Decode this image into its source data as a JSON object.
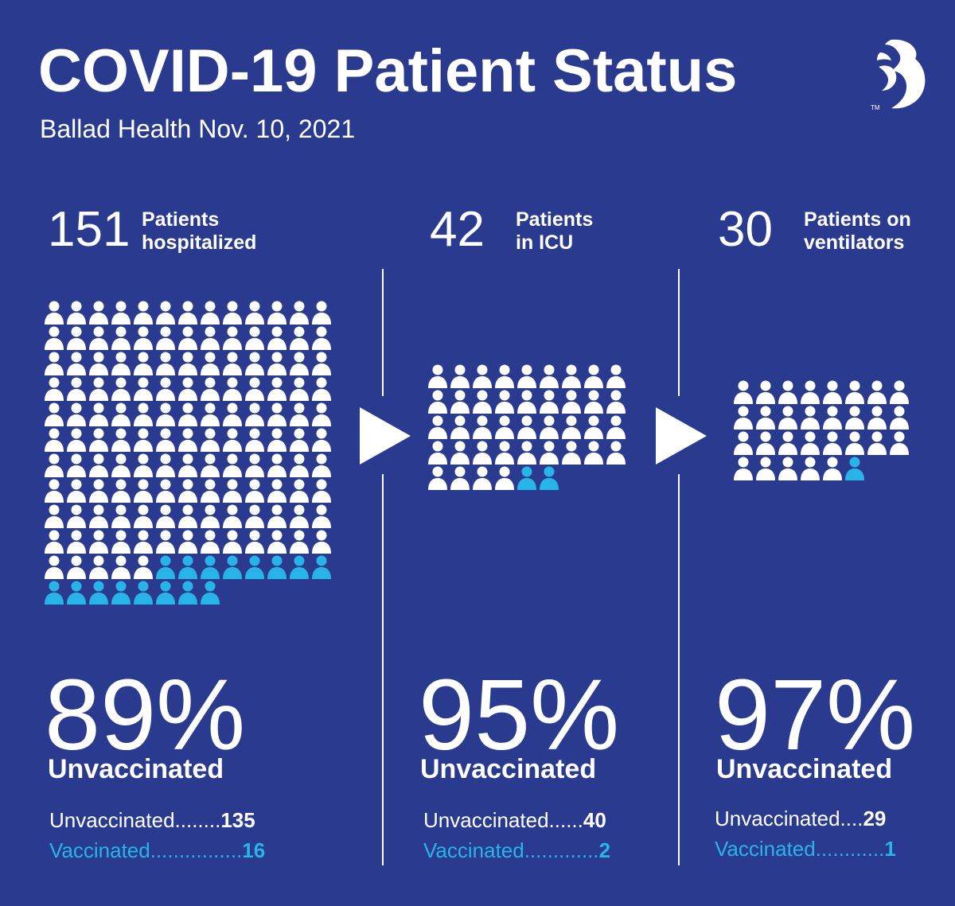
{
  "header": {
    "title": "COVID-19 Patient Status",
    "subtitle": "Ballad Health Nov. 10, 2021"
  },
  "colors": {
    "background": "#2a3b8f",
    "unvaccinated": "#ffffff",
    "vaccinated": "#29b4e8"
  },
  "chart_data": [
    {
      "type": "waffle",
      "count": "151",
      "label_line1": "Patients",
      "label_line2": "hospitalized",
      "total": 151,
      "per_row": 13,
      "unvaccinated": 135,
      "vaccinated": 16,
      "percent": "89%",
      "percent_label": "Unvaccinated",
      "unvaccinated_row": "Unvaccinated........",
      "unvaccinated_value": "135",
      "vaccinated_row": "Vaccinated................",
      "vaccinated_value": "16"
    },
    {
      "type": "waffle",
      "count": "42",
      "label_line1": "Patients",
      "label_line2": "in ICU",
      "total": 42,
      "per_row": 9,
      "unvaccinated": 40,
      "vaccinated": 2,
      "percent": "95%",
      "percent_label": "Unvaccinated",
      "unvaccinated_row": "Unvaccinated......",
      "unvaccinated_value": "40",
      "vaccinated_row": "Vaccinated.............",
      "vaccinated_value": "2"
    },
    {
      "type": "waffle",
      "count": "30",
      "label_line1": "Patients on",
      "label_line2": "ventilators",
      "total": 30,
      "per_row": 8,
      "unvaccinated": 29,
      "vaccinated": 1,
      "percent": "97%",
      "percent_label": "Unvaccinated",
      "unvaccinated_row": "Unvaccinated....",
      "unvaccinated_value": "29",
      "vaccinated_row": "Vaccinated............",
      "vaccinated_value": "1"
    }
  ]
}
